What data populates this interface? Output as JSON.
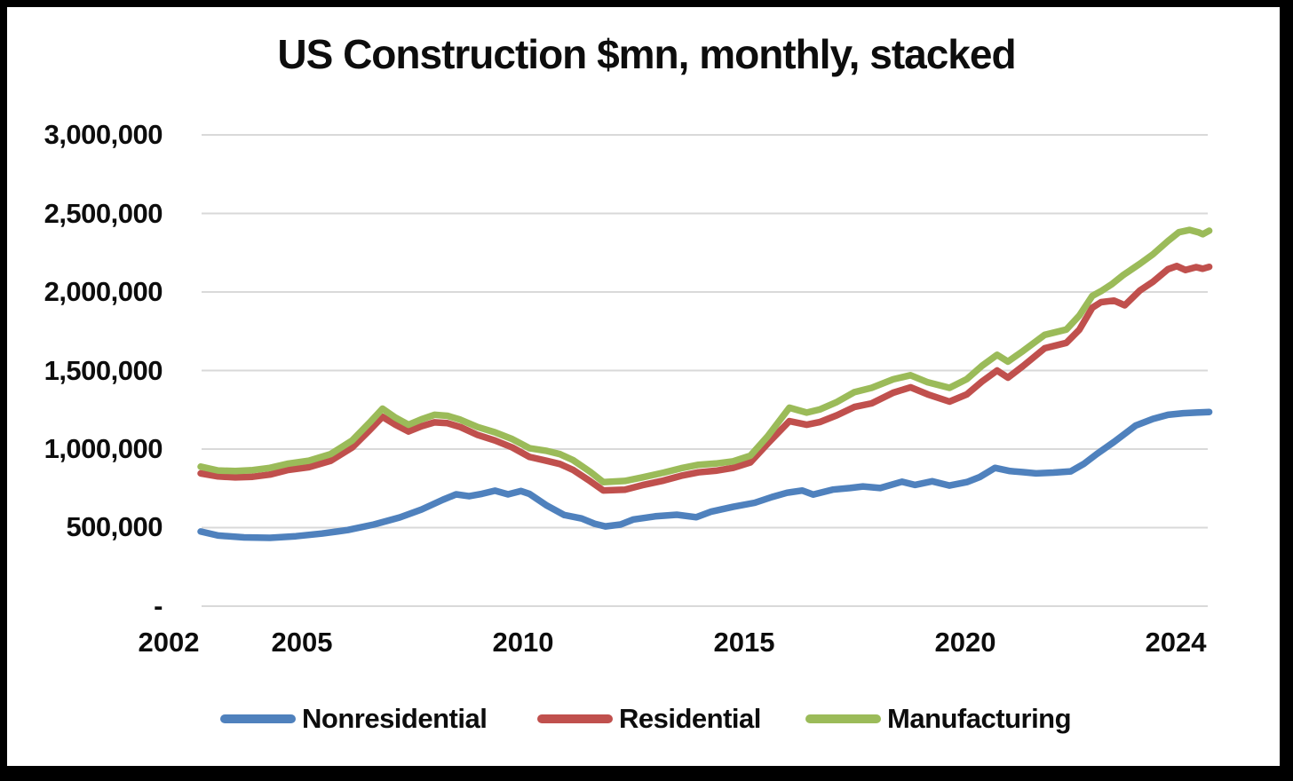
{
  "title": "US Construction $mn, monthly, stacked",
  "chart_data": {
    "type": "line",
    "title": "US Construction $mn, monthly, stacked",
    "unit": "$mn",
    "frequency": "monthly",
    "stacked": true,
    "grid": "horizontal",
    "legend_position": "bottom",
    "x_axis": {
      "ticks": [
        "2002",
        "2005",
        "2010",
        "2015",
        "2020",
        "2024"
      ],
      "range_years": [
        2002.0,
        2025.3
      ]
    },
    "y_axis": {
      "ylim": [
        0,
        3000000
      ],
      "ticks": [
        {
          "label": "3,000,000",
          "value": 3000000
        },
        {
          "label": "2,500,000",
          "value": 2500000
        },
        {
          "label": "2,000,000",
          "value": 2000000
        },
        {
          "label": "1,500,000",
          "value": 1500000
        },
        {
          "label": "1,000,000",
          "value": 1000000
        },
        {
          "label": "500,000",
          "value": 500000
        },
        {
          "label": "-",
          "value": 0
        }
      ]
    },
    "gridline_color": "#d9d9d9",
    "series": [
      {
        "name": "Nonresidential",
        "color": "#4f81bd",
        "points": [
          [
            2002.0,
            475000
          ],
          [
            2002.4,
            450000
          ],
          [
            2003.0,
            438000
          ],
          [
            2003.6,
            435000
          ],
          [
            2004.2,
            445000
          ],
          [
            2004.8,
            462000
          ],
          [
            2005.4,
            485000
          ],
          [
            2006.0,
            520000
          ],
          [
            2006.6,
            565000
          ],
          [
            2007.1,
            615000
          ],
          [
            2007.6,
            678000
          ],
          [
            2007.9,
            712000
          ],
          [
            2008.2,
            700000
          ],
          [
            2008.5,
            715000
          ],
          [
            2008.8,
            735000
          ],
          [
            2009.1,
            712000
          ],
          [
            2009.4,
            733000
          ],
          [
            2009.6,
            714000
          ],
          [
            2010.0,
            640000
          ],
          [
            2010.4,
            580000
          ],
          [
            2010.8,
            558000
          ],
          [
            2011.1,
            525000
          ],
          [
            2011.35,
            508000
          ],
          [
            2011.7,
            520000
          ],
          [
            2012.0,
            552000
          ],
          [
            2012.5,
            572000
          ],
          [
            2013.0,
            582000
          ],
          [
            2013.45,
            566000
          ],
          [
            2013.8,
            602000
          ],
          [
            2014.3,
            632000
          ],
          [
            2014.8,
            658000
          ],
          [
            2015.2,
            695000
          ],
          [
            2015.55,
            722000
          ],
          [
            2015.9,
            736000
          ],
          [
            2016.15,
            710000
          ],
          [
            2016.6,
            742000
          ],
          [
            2017.0,
            752000
          ],
          [
            2017.3,
            762000
          ],
          [
            2017.7,
            752000
          ],
          [
            2018.2,
            792000
          ],
          [
            2018.5,
            772000
          ],
          [
            2018.9,
            795000
          ],
          [
            2019.3,
            768000
          ],
          [
            2019.7,
            790000
          ],
          [
            2020.0,
            822000
          ],
          [
            2020.35,
            880000
          ],
          [
            2020.7,
            860000
          ],
          [
            2021.0,
            853000
          ],
          [
            2021.3,
            845000
          ],
          [
            2021.7,
            850000
          ],
          [
            2022.1,
            858000
          ],
          [
            2022.4,
            905000
          ],
          [
            2022.7,
            968000
          ],
          [
            2023.1,
            1045000
          ],
          [
            2023.6,
            1150000
          ],
          [
            2024.0,
            1192000
          ],
          [
            2024.35,
            1218000
          ],
          [
            2024.7,
            1228000
          ],
          [
            2025.0,
            1232000
          ],
          [
            2025.3,
            1236000
          ]
        ]
      },
      {
        "name": "Residential",
        "color": "#c0504d",
        "points": [
          [
            2002.0,
            845000
          ],
          [
            2002.4,
            826000
          ],
          [
            2002.8,
            820000
          ],
          [
            2003.2,
            824000
          ],
          [
            2003.6,
            838000
          ],
          [
            2004.0,
            866000
          ],
          [
            2004.5,
            885000
          ],
          [
            2005.0,
            925000
          ],
          [
            2005.5,
            1010000
          ],
          [
            2005.9,
            1120000
          ],
          [
            2006.2,
            1205000
          ],
          [
            2006.5,
            1155000
          ],
          [
            2006.8,
            1112000
          ],
          [
            2007.1,
            1145000
          ],
          [
            2007.4,
            1170000
          ],
          [
            2007.7,
            1165000
          ],
          [
            2008.0,
            1140000
          ],
          [
            2008.4,
            1090000
          ],
          [
            2008.8,
            1055000
          ],
          [
            2009.2,
            1010000
          ],
          [
            2009.6,
            950000
          ],
          [
            2010.0,
            925000
          ],
          [
            2010.3,
            905000
          ],
          [
            2010.6,
            868000
          ],
          [
            2011.0,
            795000
          ],
          [
            2011.3,
            737000
          ],
          [
            2011.8,
            742000
          ],
          [
            2012.2,
            770000
          ],
          [
            2012.7,
            800000
          ],
          [
            2013.1,
            830000
          ],
          [
            2013.5,
            852000
          ],
          [
            2013.9,
            862000
          ],
          [
            2014.3,
            880000
          ],
          [
            2014.7,
            915000
          ],
          [
            2015.1,
            1035000
          ],
          [
            2015.6,
            1178000
          ],
          [
            2016.0,
            1155000
          ],
          [
            2016.3,
            1172000
          ],
          [
            2016.7,
            1215000
          ],
          [
            2017.1,
            1268000
          ],
          [
            2017.5,
            1291000
          ],
          [
            2018.0,
            1359000
          ],
          [
            2018.4,
            1393000
          ],
          [
            2018.8,
            1348000
          ],
          [
            2019.3,
            1302000
          ],
          [
            2019.7,
            1348000
          ],
          [
            2020.05,
            1430000
          ],
          [
            2020.4,
            1500000
          ],
          [
            2020.65,
            1455000
          ],
          [
            2021.0,
            1529000
          ],
          [
            2021.5,
            1642000
          ],
          [
            2022.0,
            1676000
          ],
          [
            2022.3,
            1760000
          ],
          [
            2022.6,
            1900000
          ],
          [
            2022.8,
            1935000
          ],
          [
            2023.1,
            1945000
          ],
          [
            2023.35,
            1915000
          ],
          [
            2023.7,
            2010000
          ],
          [
            2024.0,
            2065000
          ],
          [
            2024.35,
            2145000
          ],
          [
            2024.55,
            2165000
          ],
          [
            2024.75,
            2140000
          ],
          [
            2025.0,
            2158000
          ],
          [
            2025.15,
            2148000
          ],
          [
            2025.3,
            2160000
          ]
        ]
      },
      {
        "name": "Manufacturing",
        "color": "#9bbb59",
        "points": [
          [
            2002.0,
            888000
          ],
          [
            2002.4,
            864000
          ],
          [
            2002.8,
            860000
          ],
          [
            2003.2,
            866000
          ],
          [
            2003.6,
            880000
          ],
          [
            2004.0,
            906000
          ],
          [
            2004.5,
            926000
          ],
          [
            2005.0,
            968000
          ],
          [
            2005.5,
            1055000
          ],
          [
            2005.9,
            1168000
          ],
          [
            2006.2,
            1257000
          ],
          [
            2006.5,
            1200000
          ],
          [
            2006.8,
            1155000
          ],
          [
            2007.1,
            1190000
          ],
          [
            2007.4,
            1218000
          ],
          [
            2007.7,
            1212000
          ],
          [
            2008.0,
            1187000
          ],
          [
            2008.4,
            1140000
          ],
          [
            2008.8,
            1107000
          ],
          [
            2009.2,
            1063000
          ],
          [
            2009.6,
            1005000
          ],
          [
            2010.0,
            988000
          ],
          [
            2010.3,
            968000
          ],
          [
            2010.6,
            930000
          ],
          [
            2011.0,
            855000
          ],
          [
            2011.3,
            790000
          ],
          [
            2011.8,
            797000
          ],
          [
            2012.2,
            820000
          ],
          [
            2012.7,
            850000
          ],
          [
            2013.1,
            878000
          ],
          [
            2013.5,
            900000
          ],
          [
            2013.9,
            908000
          ],
          [
            2014.3,
            922000
          ],
          [
            2014.7,
            958000
          ],
          [
            2015.1,
            1082000
          ],
          [
            2015.6,
            1263000
          ],
          [
            2016.0,
            1232000
          ],
          [
            2016.3,
            1252000
          ],
          [
            2016.7,
            1300000
          ],
          [
            2017.1,
            1362000
          ],
          [
            2017.5,
            1390000
          ],
          [
            2018.0,
            1444000
          ],
          [
            2018.4,
            1470000
          ],
          [
            2018.8,
            1425000
          ],
          [
            2019.3,
            1390000
          ],
          [
            2019.7,
            1445000
          ],
          [
            2020.05,
            1530000
          ],
          [
            2020.4,
            1600000
          ],
          [
            2020.65,
            1557000
          ],
          [
            2021.0,
            1625000
          ],
          [
            2021.5,
            1727000
          ],
          [
            2022.0,
            1761000
          ],
          [
            2022.3,
            1850000
          ],
          [
            2022.6,
            1975000
          ],
          [
            2022.8,
            2005000
          ],
          [
            2023.05,
            2050000
          ],
          [
            2023.3,
            2105000
          ],
          [
            2023.7,
            2180000
          ],
          [
            2024.0,
            2240000
          ],
          [
            2024.35,
            2325000
          ],
          [
            2024.6,
            2380000
          ],
          [
            2024.85,
            2395000
          ],
          [
            2025.05,
            2380000
          ],
          [
            2025.15,
            2368000
          ],
          [
            2025.3,
            2390000
          ]
        ]
      }
    ]
  }
}
